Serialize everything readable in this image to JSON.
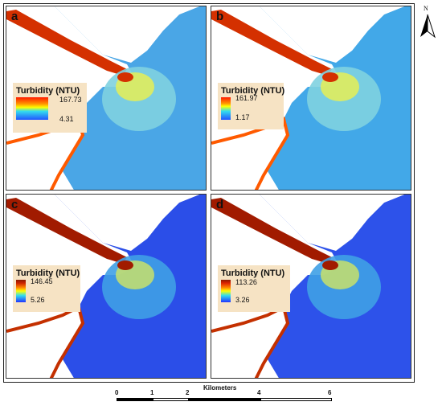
{
  "panels": [
    {
      "letter": "a",
      "legend_title": "Turbidity (NTU)",
      "max": "167.73",
      "min": "4.31",
      "ramp": "linear-gradient(#ff1a00, #ff9900 30%, #ffff00 45%, #33ddee 62%, #2255ff 100%)",
      "sea_color": "#4aa6e6"
    },
    {
      "letter": "b",
      "legend_title": "Turbidity (NTU)",
      "max": "161.97",
      "min": "1.17",
      "ramp": "linear-gradient(#ff1a00, #ff9900 28%, #ffff00 40%, #33ddee 62%, #2255ff 100%)",
      "sea_color": "#42a8e8"
    },
    {
      "letter": "c",
      "legend_title": "Turbidity (NTU)",
      "max": "146.45",
      "min": "5.26",
      "ramp": "linear-gradient(#8b1a00, #cc2200 15%, #ff8800 35%, #ffff00 50%, #33ddee 70%, #2233ff 100%)",
      "sea_color": "#2b4ee8"
    },
    {
      "letter": "d",
      "legend_title": "Turbidity (NTU)",
      "max": "113.26",
      "min": "3.26",
      "ramp": "linear-gradient(#8b1a00, #dd2200 15%, #ff8800 35%, #ffff00 50%, #33ddee 70%, #2233ff 100%)",
      "sea_color": "#2d52ea"
    }
  ],
  "north_arrow": {
    "label": "N"
  },
  "scale_bar": {
    "title": "Kilometers",
    "ticks": [
      "0",
      "1",
      "2",
      "4",
      "6"
    ]
  }
}
